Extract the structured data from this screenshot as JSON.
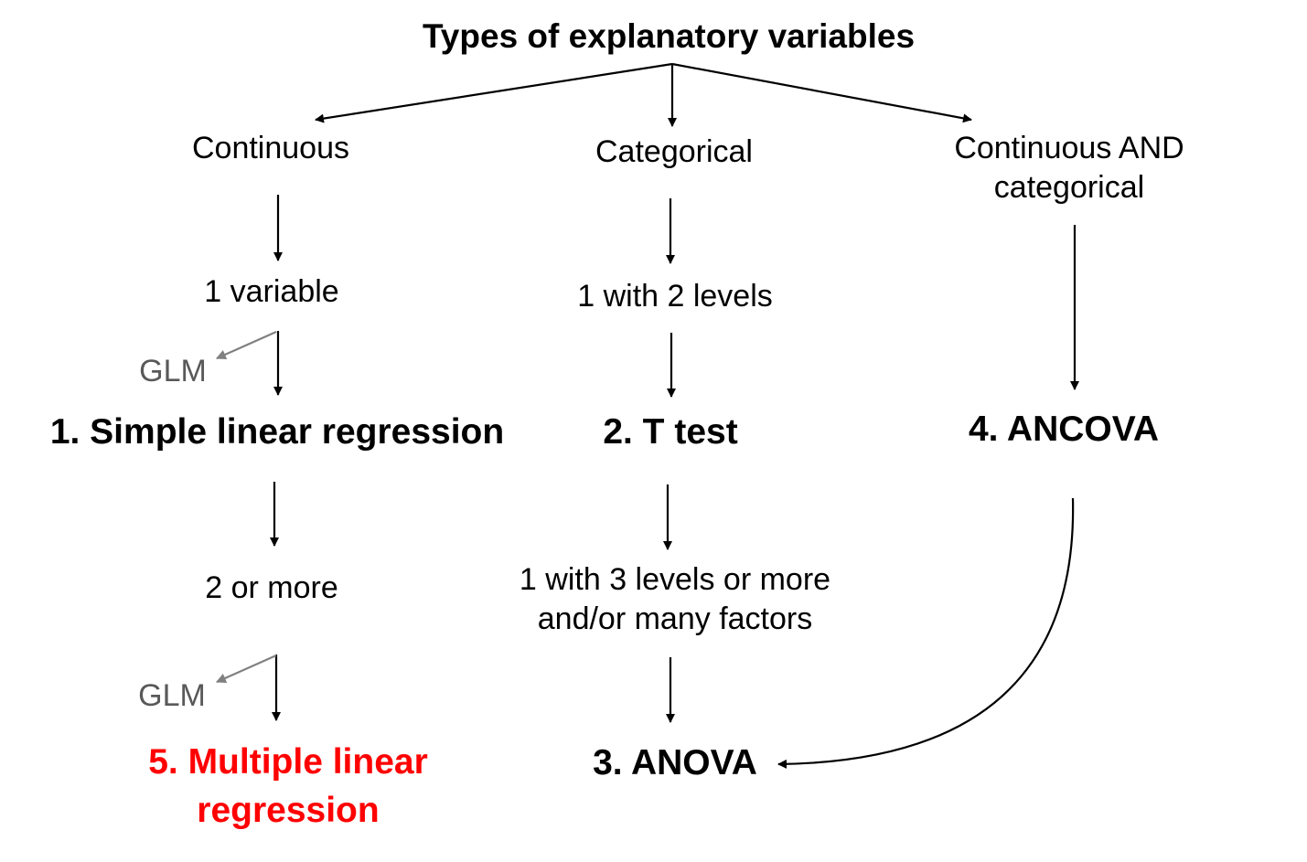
{
  "title": "Types of explanatory variables",
  "categories": {
    "continuous": "Continuous",
    "categorical": "Categorical",
    "both_line1": "Continuous AND",
    "both_line2": "categorical"
  },
  "conditions": {
    "one_variable": "1 variable",
    "two_or_more": "2 or more",
    "one_with_two_levels": "1 with 2 levels",
    "three_levels_line1": "1 with 3 levels or more",
    "three_levels_line2": "and/or many factors"
  },
  "methods": {
    "simple_linear_regression": "1. Simple linear regression",
    "t_test": "2. T test",
    "anova": "3. ANOVA",
    "ancova": "4. ANCOVA",
    "multiple_line1": "5. Multiple linear",
    "multiple_line2": "regression"
  },
  "glm_label": "GLM",
  "colors": {
    "text": "#000000",
    "highlight": "#ff0000",
    "glm": "#595959",
    "glm_arrow": "#808080"
  }
}
